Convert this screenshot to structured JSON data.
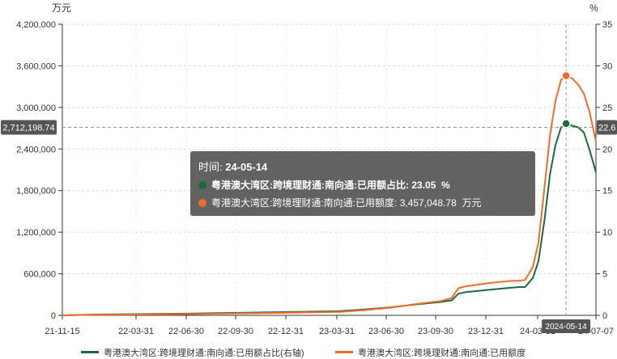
{
  "chart_data": {
    "type": "line",
    "left_unit": "万元",
    "right_unit": "%",
    "y_left": {
      "min": 0,
      "max": 4200000,
      "ticks": [
        "0",
        "600,000",
        "1,200,000",
        "1,800,000",
        "2,400,000",
        "3,000,000",
        "3,600,000",
        "4,200,000"
      ]
    },
    "y_right": {
      "min": 0,
      "max": 35,
      "ticks": [
        "0",
        "5",
        "10",
        "15",
        "20",
        "25",
        "30",
        "35"
      ]
    },
    "x_tick_labels": [
      "21-11-15",
      "22-03-31",
      "22-06-30",
      "22-09-30",
      "22-12-31",
      "23-03-31",
      "23-06-30",
      "23-09-30",
      "23-12-31",
      "24-03-31",
      "24-07-07"
    ],
    "grid": true,
    "legend_position": "bottom",
    "crosshair_x_label": "2024-05-14",
    "crosshair_y_left_label": "2,712,198.74",
    "crosshair_y_right_label": "22.6",
    "tooltip": {
      "time_label": "时间:",
      "time_value": "24-05-14",
      "rows": [
        {
          "name": "粤港澳大湾区:跨境理财通:南向通:已用额占比",
          "value": "23.05",
          "unit": "%",
          "bold": true,
          "color": "#1a6b3c"
        },
        {
          "name": "粤港澳大湾区:跨境理财通:南向通:已用额度",
          "value": "3,457,048.78",
          "unit": "万元",
          "bold": false,
          "color": "#f26b2a"
        }
      ]
    },
    "series": [
      {
        "name": "粤港澳大湾区:跨境理财通:南向通:已用额占比(右轴)",
        "axis": "right",
        "color": "#1a6b3c",
        "x": [
          "2021-11-15",
          "2022-01-15",
          "2022-03-31",
          "2022-06-30",
          "2022-09-30",
          "2022-12-31",
          "2023-03-31",
          "2023-05-15",
          "2023-06-30",
          "2023-08-15",
          "2023-09-30",
          "2023-10-20",
          "2023-11-01",
          "2023-11-15",
          "2023-12-31",
          "2024-01-31",
          "2024-02-20",
          "2024-03-01",
          "2024-03-15",
          "2024-03-25",
          "2024-04-05",
          "2024-04-15",
          "2024-04-25",
          "2024-05-05",
          "2024-05-14",
          "2024-05-25",
          "2024-06-05",
          "2024-06-15",
          "2024-06-25",
          "2024-07-07"
        ],
        "values": [
          0,
          0.1,
          0.15,
          0.2,
          0.3,
          0.4,
          0.5,
          0.7,
          0.95,
          1.3,
          1.6,
          1.8,
          2.6,
          2.8,
          3.1,
          3.3,
          3.4,
          3.4,
          4.5,
          6.5,
          11.5,
          17.0,
          20.5,
          22.6,
          23.05,
          22.8,
          22.6,
          22.0,
          20.0,
          17.2
        ]
      },
      {
        "name": "粤港澳大湾区:跨境理财通:南向通:已用额度",
        "axis": "left",
        "color": "#f26b2a",
        "x": [
          "2021-11-15",
          "2022-01-15",
          "2022-03-31",
          "2022-06-30",
          "2022-09-30",
          "2022-12-31",
          "2023-03-31",
          "2023-05-15",
          "2023-06-30",
          "2023-08-15",
          "2023-09-30",
          "2023-10-20",
          "2023-11-01",
          "2023-11-15",
          "2023-12-31",
          "2024-01-31",
          "2024-02-20",
          "2024-03-01",
          "2024-03-15",
          "2024-03-25",
          "2024-04-05",
          "2024-04-15",
          "2024-04-25",
          "2024-05-05",
          "2024-05-14",
          "2024-05-25",
          "2024-06-05",
          "2024-06-15",
          "2024-06-25",
          "2024-07-07"
        ],
        "values": [
          0,
          8000,
          12000,
          18000,
          28000,
          38000,
          50000,
          75000,
          110000,
          160000,
          205000,
          250000,
          390000,
          420000,
          470000,
          495000,
          500000,
          510000,
          700000,
          1050000,
          1850000,
          2600000,
          3100000,
          3400000,
          3457048.78,
          3420000,
          3330000,
          3200000,
          2950000,
          2510000
        ]
      }
    ]
  }
}
